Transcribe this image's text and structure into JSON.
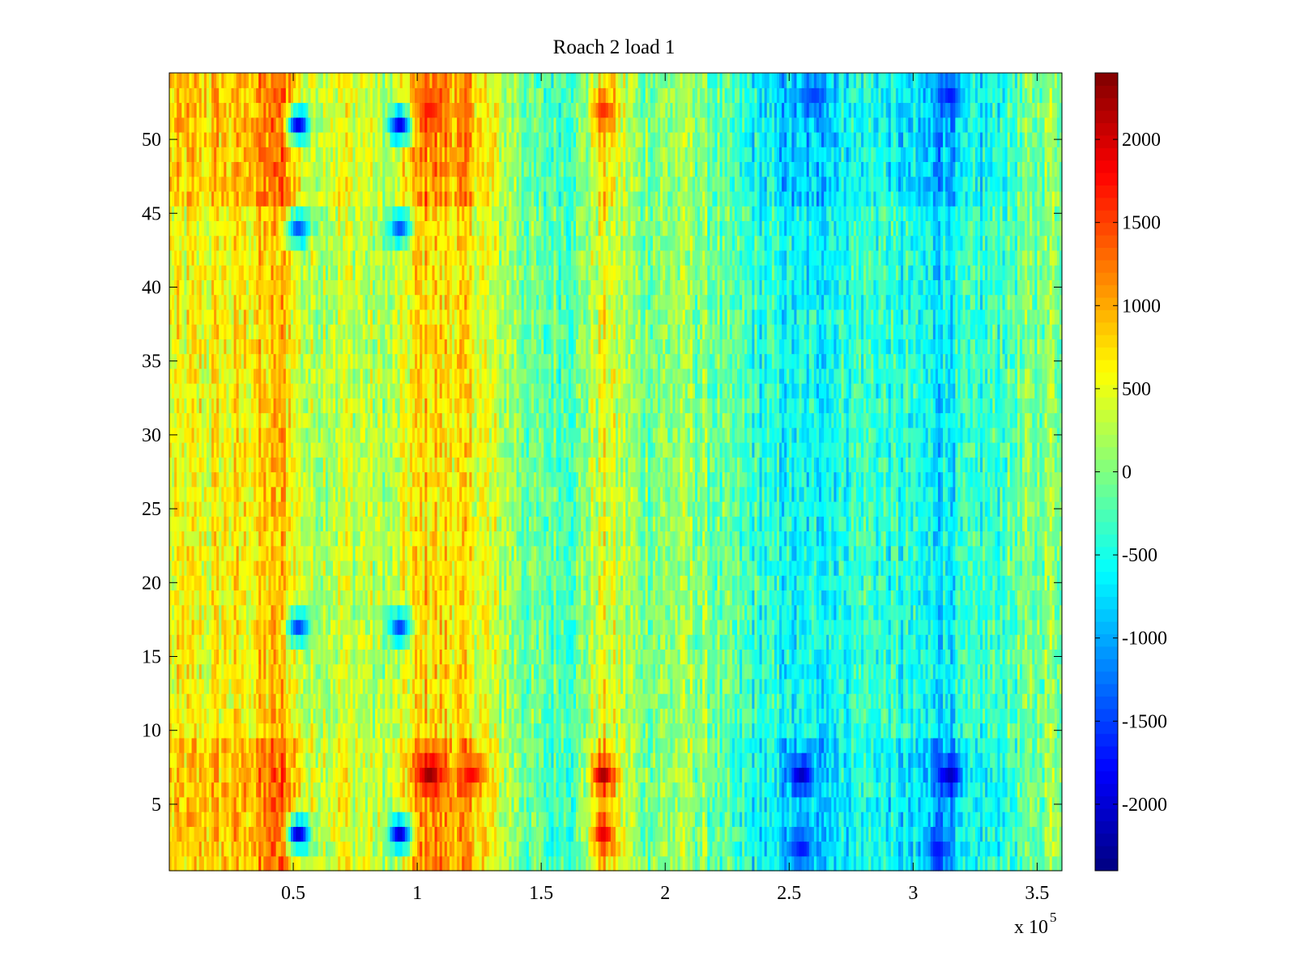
{
  "chart_data": {
    "type": "heatmap",
    "title": "Roach 2 load 1",
    "xlabel": "",
    "ylabel": "",
    "x_scale_label": "x 10",
    "x_scale_exponent": "5",
    "x_multiplier": 100000,
    "xlim": [
      0,
      3.6
    ],
    "ylim": [
      0.5,
      54.5
    ],
    "x_ticks": [
      0.5,
      1,
      1.5,
      2,
      2.5,
      3,
      3.5
    ],
    "x_tick_labels": [
      "0.5",
      "1",
      "1.5",
      "2",
      "2.5",
      "3",
      "3.5"
    ],
    "y_ticks": [
      5,
      10,
      15,
      20,
      25,
      30,
      35,
      40,
      45,
      50
    ],
    "y_tick_labels": [
      "5",
      "10",
      "15",
      "20",
      "25",
      "30",
      "35",
      "40",
      "45",
      "50"
    ],
    "rows": 54,
    "columns": 360,
    "colormap": "jet",
    "clim": [
      -2400,
      2400
    ],
    "colorbar": {
      "position": "right",
      "ticks": [
        -2000,
        -1500,
        -1000,
        -500,
        0,
        500,
        1000,
        1500,
        2000
      ],
      "tick_labels": [
        "-2000",
        "-1500",
        "-1000",
        "-500",
        "0",
        "500",
        "1000",
        "1500",
        "2000"
      ]
    },
    "column_profile": [
      {
        "x": 0.0,
        "value": 500
      },
      {
        "x": 0.3,
        "value": 600
      },
      {
        "x": 0.46,
        "value": 900
      },
      {
        "x": 0.55,
        "value": 250
      },
      {
        "x": 0.7,
        "value": 350
      },
      {
        "x": 0.9,
        "value": 150
      },
      {
        "x": 1.02,
        "value": 800
      },
      {
        "x": 1.2,
        "value": 650
      },
      {
        "x": 1.35,
        "value": 200
      },
      {
        "x": 1.5,
        "value": -200
      },
      {
        "x": 1.65,
        "value": -100
      },
      {
        "x": 1.75,
        "value": 500
      },
      {
        "x": 1.9,
        "value": 0
      },
      {
        "x": 2.1,
        "value": 100
      },
      {
        "x": 2.3,
        "value": -300
      },
      {
        "x": 2.55,
        "value": -650
      },
      {
        "x": 2.8,
        "value": -300
      },
      {
        "x": 3.1,
        "value": -650
      },
      {
        "x": 3.35,
        "value": -300
      },
      {
        "x": 3.6,
        "value": 150
      }
    ],
    "row_bands": [
      {
        "rows": [
          1,
          9
        ],
        "effect": "stronger extremes"
      },
      {
        "rows": [
          46,
          54
        ],
        "effect": "stronger extremes"
      }
    ],
    "hot_spots": [
      {
        "x": 1.05,
        "row": 7,
        "value": 2300
      },
      {
        "x": 1.75,
        "row": 7,
        "value": 2200
      },
      {
        "x": 1.75,
        "row": 3,
        "value": 1900
      },
      {
        "x": 1.05,
        "row": 52,
        "value": 1700
      },
      {
        "x": 1.75,
        "row": 52,
        "value": 1600
      },
      {
        "x": 1.22,
        "row": 7,
        "value": 1800
      }
    ],
    "cold_spots": [
      {
        "x": 2.55,
        "row": 7,
        "value": -2100
      },
      {
        "x": 3.15,
        "row": 7,
        "value": -2100
      },
      {
        "x": 2.55,
        "row": 2,
        "value": -1700
      },
      {
        "x": 3.1,
        "row": 2,
        "value": -1700
      },
      {
        "x": 3.15,
        "row": 53,
        "value": -1700
      },
      {
        "x": 2.6,
        "row": 53,
        "value": -1500
      },
      {
        "x": 0.52,
        "row": 51,
        "value": -1900
      },
      {
        "x": 0.52,
        "row": 3,
        "value": -2000
      },
      {
        "x": 0.52,
        "row": 44,
        "value": -1400
      },
      {
        "x": 0.52,
        "row": 17,
        "value": -1500
      },
      {
        "x": 0.93,
        "row": 51,
        "value": -1900
      },
      {
        "x": 0.93,
        "row": 3,
        "value": -2000
      },
      {
        "x": 0.93,
        "row": 44,
        "value": -1400
      },
      {
        "x": 0.93,
        "row": 17,
        "value": -1500
      }
    ]
  }
}
